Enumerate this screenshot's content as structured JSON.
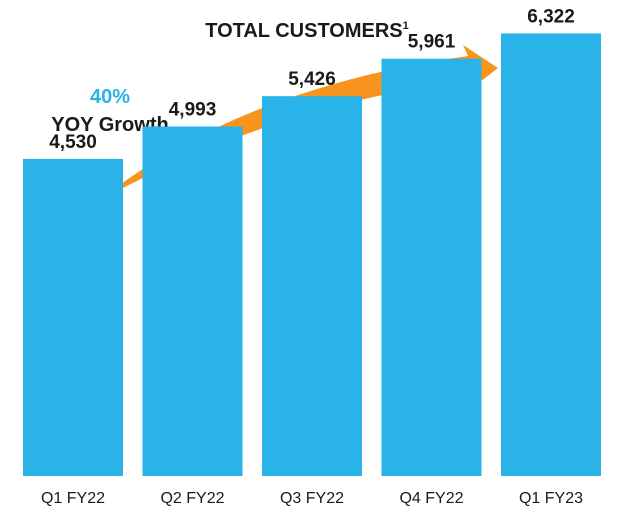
{
  "chart_data": {
    "type": "bar",
    "title": "TOTAL CUSTOMERS",
    "title_superscript": "1",
    "categories": [
      "Q1 FY22",
      "Q2 FY22",
      "Q3 FY22",
      "Q4 FY22",
      "Q1 FY23"
    ],
    "values": [
      4530,
      4993,
      5426,
      5961,
      6322
    ],
    "value_labels": [
      "4,530",
      "4,993",
      "5,426",
      "5,961",
      "6,322"
    ],
    "ylim": [
      0,
      6800
    ],
    "grid": false,
    "bar_color": "#29b3e8",
    "annotation": {
      "percent": "40%",
      "label": "YOY Growth",
      "percent_color": "#29b3e8",
      "arrow_color": "#f7941d"
    }
  }
}
